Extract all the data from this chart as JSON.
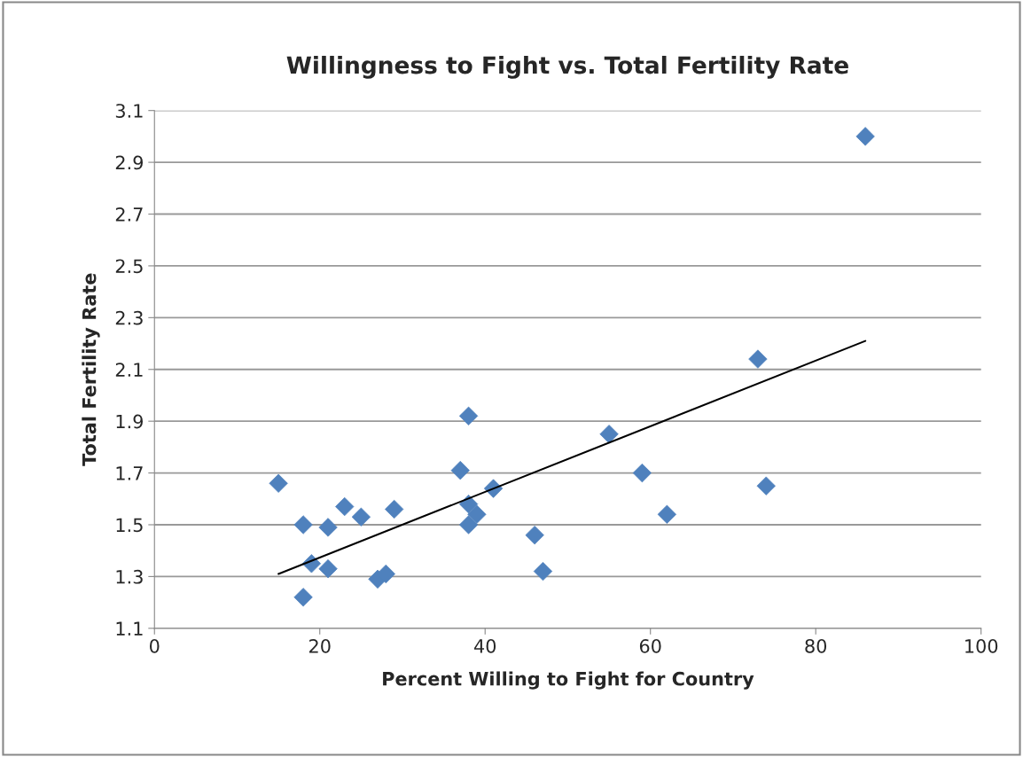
{
  "chart_data": {
    "type": "scatter",
    "title": "Willingness to Fight vs. Total Fertility Rate",
    "xlabel": "Percent Willing to Fight for Country",
    "ylabel": "Total Fertility Rate",
    "xlim": [
      0,
      100
    ],
    "xticks": [
      0,
      20,
      40,
      60,
      80,
      100
    ],
    "ylim": [
      1.1,
      3.1
    ],
    "yticks": [
      1.1,
      1.3,
      1.5,
      1.7,
      1.9,
      2.1,
      2.3,
      2.5,
      2.7,
      2.9,
      3.1
    ],
    "grid": "y",
    "legend": false,
    "marker": "diamond",
    "series": [
      {
        "color": "#4f81bd",
        "x": [
          15,
          18,
          18,
          19,
          21,
          21,
          23,
          25,
          27,
          28,
          29,
          37,
          38,
          38,
          38,
          39,
          41,
          46,
          47,
          55,
          59,
          62,
          73,
          74,
          86
        ],
        "values": [
          1.66,
          1.5,
          1.22,
          1.35,
          1.49,
          1.33,
          1.57,
          1.53,
          1.29,
          1.31,
          1.56,
          1.71,
          1.92,
          1.58,
          1.5,
          1.54,
          1.64,
          1.46,
          1.32,
          1.85,
          1.7,
          1.54,
          2.14,
          1.65,
          3.0
        ]
      },
      {
        "type": "line",
        "color": "#000000",
        "marker": "none",
        "x": [
          15,
          86
        ],
        "values": [
          1.31,
          2.21
        ]
      }
    ]
  }
}
